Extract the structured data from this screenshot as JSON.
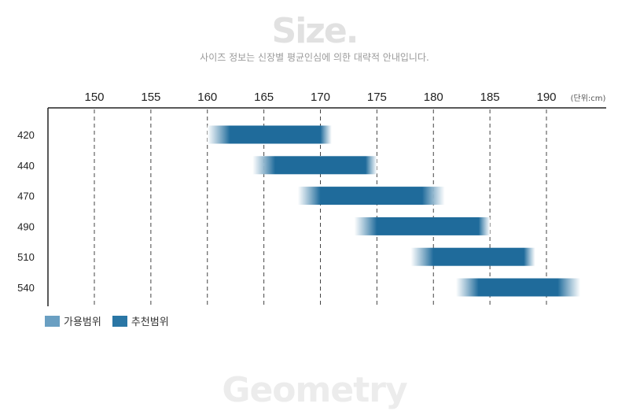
{
  "header": {
    "title": "Size.",
    "subtitle": "사이즈 정보는 신장별 평균인심에 의한 대략적 안내입니다.",
    "bottom_title": "Geometry"
  },
  "legend": {
    "items": [
      {
        "label": "가용범위",
        "color": "#6a9fc2"
      },
      {
        "label": "추천범위",
        "color": "#2a76a5"
      }
    ]
  },
  "chart_data": {
    "type": "bar",
    "orientation": "horizontal-range",
    "x_ticks": [
      150,
      155,
      160,
      165,
      170,
      175,
      180,
      185,
      190
    ],
    "x_unit_label": "(단위:cm)",
    "xlim": [
      146,
      195
    ],
    "grid": "vertical-dashed",
    "legend_placement": "bottom-left",
    "categories": [
      "420",
      "440",
      "470",
      "490",
      "510",
      "540"
    ],
    "series": [
      {
        "name": "가용범위",
        "ranges": [
          [
            160,
            171
          ],
          [
            164,
            175
          ],
          [
            168,
            181
          ],
          [
            173,
            185
          ],
          [
            178,
            189
          ],
          [
            182,
            193
          ]
        ]
      },
      {
        "name": "추천범위",
        "ranges": [
          [
            162,
            170
          ],
          [
            166,
            174
          ],
          [
            170,
            179
          ],
          [
            175,
            184
          ],
          [
            180,
            188
          ],
          [
            184,
            191
          ]
        ]
      }
    ],
    "colors": {
      "core": "#1f6b9b",
      "edge": "#ffffff"
    }
  }
}
